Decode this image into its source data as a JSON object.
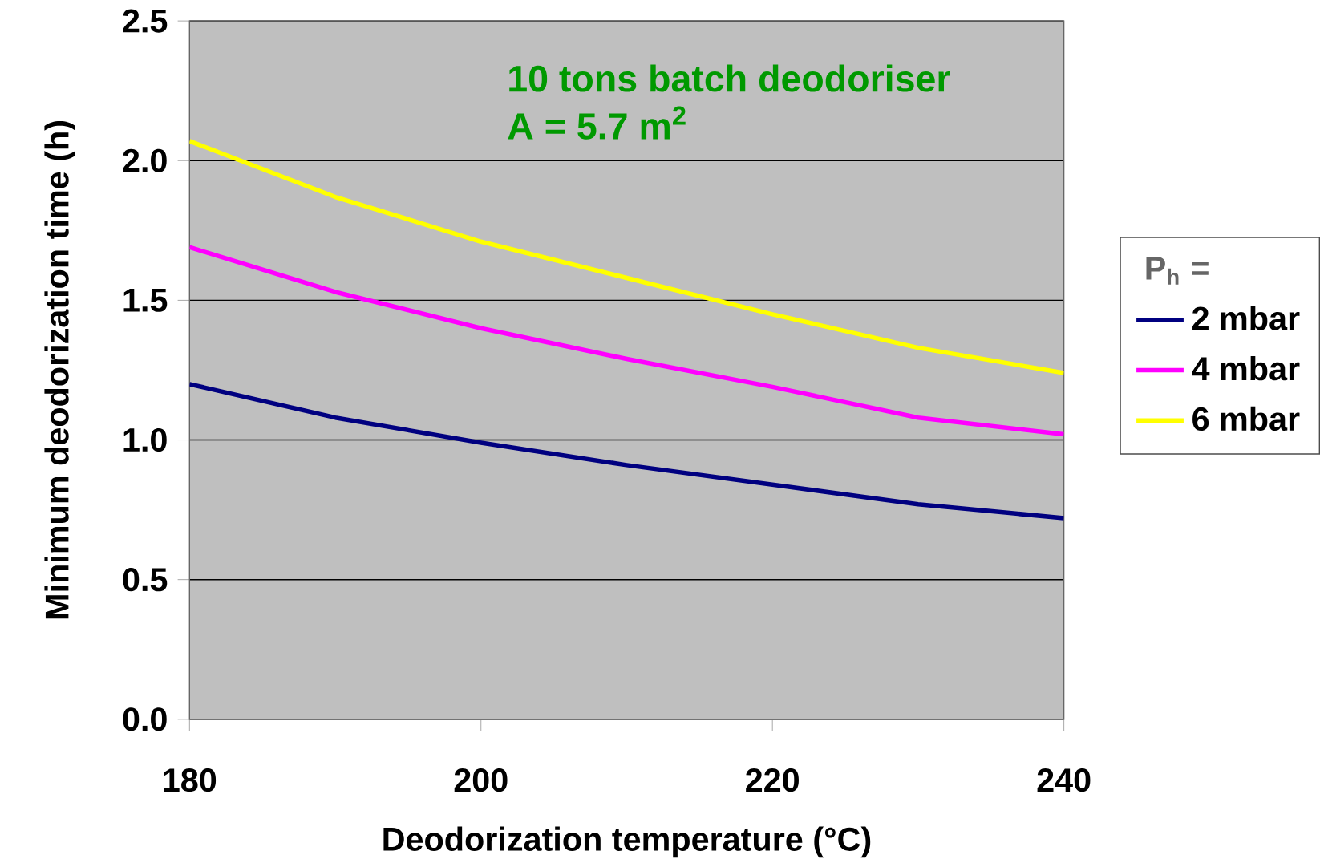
{
  "chart_data": {
    "type": "line",
    "xlabel": "Deodorization temperature (°C)",
    "ylabel": "Minimum deodorization time (h)",
    "legend_title": "P$_{h}$ =",
    "annotations": [
      "10 tons batch deodoriser",
      "A = 5.7 m$^{2}$"
    ],
    "x": [
      180,
      190,
      200,
      210,
      220,
      230,
      240
    ],
    "series": [
      {
        "name": "2 mbar",
        "color": "#000080",
        "values": [
          1.2,
          1.08,
          0.99,
          0.91,
          0.84,
          0.77,
          0.72
        ]
      },
      {
        "name": "4 mbar",
        "color": "#ff00ff",
        "values": [
          1.69,
          1.53,
          1.4,
          1.29,
          1.19,
          1.08,
          1.02
        ]
      },
      {
        "name": "6 mbar",
        "color": "#ffff00",
        "values": [
          2.07,
          1.87,
          1.71,
          1.58,
          1.45,
          1.33,
          1.24
        ]
      }
    ],
    "xlim": [
      180,
      240
    ],
    "xticks": [
      180,
      200,
      220,
      240
    ],
    "ylim": [
      0,
      2.5
    ],
    "yticks": [
      {
        "value": 0,
        "label": "0.0"
      },
      {
        "value": 0.5,
        "label": "0.5"
      },
      {
        "value": 1,
        "label": "1.0"
      },
      {
        "value": 1.5,
        "label": "1.5"
      },
      {
        "value": 2,
        "label": "2.0"
      },
      {
        "value": 2.5,
        "label": "2.5"
      }
    ],
    "grid": "y",
    "legend": "right",
    "marker": "none",
    "line_style": "solid"
  }
}
